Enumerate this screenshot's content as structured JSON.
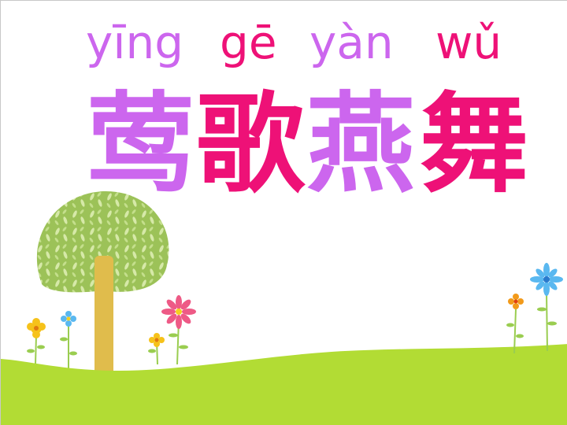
{
  "pinyin": [
    {
      "text": "yīng",
      "color": "#cc66ee"
    },
    {
      "text": "gē",
      "color": "#ee1177"
    },
    {
      "text": "yàn",
      "color": "#cc66ee"
    },
    {
      "text": "wǔ",
      "color": "#ee1177"
    }
  ],
  "hanzi": [
    {
      "text": "莺",
      "color": "#cc66ee"
    },
    {
      "text": "歌",
      "color": "#ee1177"
    },
    {
      "text": "燕",
      "color": "#cc66ee"
    },
    {
      "text": "舞",
      "color": "#ee1177"
    }
  ],
  "colors": {
    "purple": "#cc66ee",
    "magenta": "#ee1177",
    "grass": "#b2dc34",
    "tree_canopy": "#9cc258",
    "tree_trunk": "#e0bc4c"
  },
  "decor": {
    "tree": "tree-illustration",
    "flowers": [
      "yellow-flower",
      "blue-flower",
      "yellow-flower",
      "pink-flower",
      "orange-flower",
      "blue-flower"
    ]
  }
}
